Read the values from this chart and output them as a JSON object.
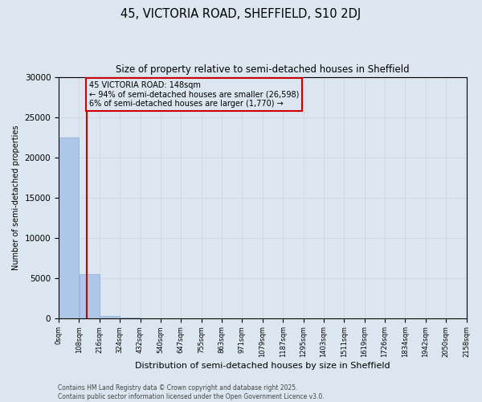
{
  "title": "45, VICTORIA ROAD, SHEFFIELD, S10 2DJ",
  "subtitle": "Size of property relative to semi-detached houses in Sheffield",
  "xlabel": "Distribution of semi-detached houses by size in Sheffield",
  "ylabel": "Number of semi-detached properties",
  "property_size": 148,
  "annotation_title": "45 VICTORIA ROAD: 148sqm",
  "annotation_line1": "← 94% of semi-detached houses are smaller (26,598)",
  "annotation_line2": "6% of semi-detached houses are larger (1,770) →",
  "footer_line1": "Contains HM Land Registry data © Crown copyright and database right 2025.",
  "footer_line2": "Contains public sector information licensed under the Open Government Licence v3.0.",
  "bin_edges": [
    0,
    108,
    216,
    324,
    432,
    540,
    647,
    755,
    863,
    971,
    1079,
    1187,
    1295,
    1403,
    1511,
    1619,
    1726,
    1834,
    1942,
    2050,
    2158
  ],
  "bar_heights": [
    22500,
    5500,
    280,
    30,
    8,
    3,
    2,
    1,
    1,
    0,
    0,
    0,
    0,
    0,
    0,
    0,
    0,
    0,
    0,
    0
  ],
  "bar_color": "#aec6e8",
  "bar_edgecolor": "#aec6e8",
  "grid_color": "#c8d4e0",
  "background_color": "#dce6f0",
  "vline_color": "#cc0000",
  "annotation_box_color": "#cc0000",
  "ylim": [
    0,
    30000
  ],
  "yticks": [
    0,
    5000,
    10000,
    15000,
    20000,
    25000,
    30000
  ]
}
